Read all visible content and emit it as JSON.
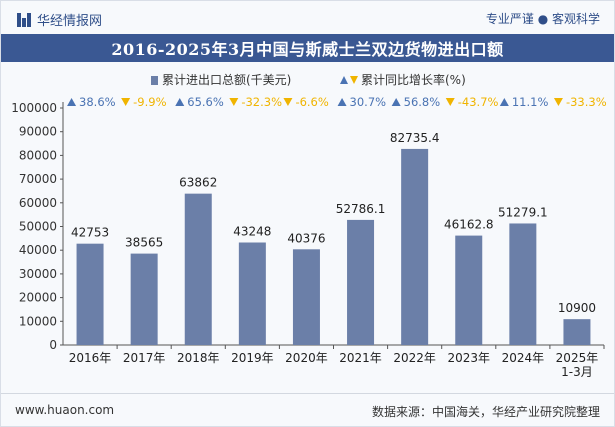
{
  "header": {
    "logo_text": "华经情报网",
    "tagline": "专业严谨 ● 客观科学"
  },
  "chart_title": "2016-2025年3月中国与斯威士兰双边货物进出口额",
  "footer": {
    "site": "www.huaon.com",
    "source": "数据来源：中国海关，华经产业研究院整理"
  },
  "colors": {
    "bar": "#6b7fa8",
    "up": "#4a73b3",
    "down": "#f0b400",
    "title_bg": "#3a5893"
  },
  "chart_data": {
    "type": "bar",
    "categories": [
      "2016年",
      "2017年",
      "2018年",
      "2019年",
      "2020年",
      "2021年",
      "2022年",
      "2023年",
      "2024年",
      "2025年\n1-3月"
    ],
    "series": [
      {
        "name": "累计进出口总额(千美元)",
        "values": [
          42753,
          38565,
          63862,
          43248,
          40376,
          52786.1,
          82735.4,
          46162.8,
          51279.1,
          10900
        ],
        "labels": [
          "42753",
          "38565",
          "63862",
          "43248",
          "40376",
          "52786.1",
          "82735.4",
          "46162.8",
          "51279.1",
          "10900"
        ]
      },
      {
        "name": "累计同比增长率(%)",
        "values": [
          38.6,
          -9.9,
          65.6,
          -32.3,
          -6.6,
          30.7,
          56.8,
          -43.7,
          11.1,
          -33.3
        ],
        "labels": [
          "38.6%",
          "-9.9%",
          "65.6%",
          "-32.3%",
          "-6.6%",
          "30.7%",
          "56.8%",
          "-43.7%",
          "11.1%",
          "-33.3%"
        ]
      }
    ],
    "ylim": [
      0,
      100000
    ],
    "yticks": [
      "0",
      "10000",
      "20000",
      "30000",
      "40000",
      "50000",
      "60000",
      "70000",
      "80000",
      "90000",
      "100000"
    ],
    "legend_position": "top-center",
    "grid": false
  }
}
